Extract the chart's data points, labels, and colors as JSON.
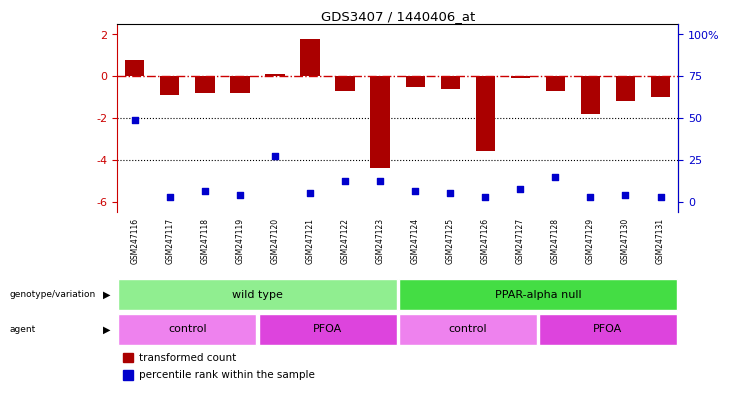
{
  "title": "GDS3407 / 1440406_at",
  "samples": [
    "GSM247116",
    "GSM247117",
    "GSM247118",
    "GSM247119",
    "GSM247120",
    "GSM247121",
    "GSM247122",
    "GSM247123",
    "GSM247124",
    "GSM247125",
    "GSM247126",
    "GSM247127",
    "GSM247128",
    "GSM247129",
    "GSM247130",
    "GSM247131"
  ],
  "bar_values": [
    0.8,
    -0.9,
    -0.8,
    -0.8,
    0.1,
    1.8,
    -0.7,
    -4.4,
    -0.5,
    -0.6,
    -3.6,
    -0.1,
    -0.7,
    -1.8,
    -1.2,
    -1.0
  ],
  "dot_values": [
    -2.1,
    -5.8,
    -5.5,
    -5.7,
    -3.8,
    -5.6,
    -5.0,
    -5.0,
    -5.5,
    -5.6,
    -5.8,
    -5.4,
    -4.8,
    -5.8,
    -5.7,
    -5.8
  ],
  "bar_color": "#aa0000",
  "dot_color": "#0000cc",
  "hline_color": "#cc0000",
  "dotted_line_color": "#000000",
  "ylim": [
    -6.5,
    2.5
  ],
  "yticks_left": [
    2,
    0,
    -2,
    -4,
    -6
  ],
  "yticks_right_vals": [
    2,
    0,
    -2,
    -4,
    -6
  ],
  "yticks_right_labels": [
    "100%",
    "75",
    "50",
    "25",
    "0"
  ],
  "right_axis_color": "#0000cc",
  "genotype_groups": [
    {
      "label": "wild type",
      "start": 0,
      "end": 7,
      "color": "#90ee90"
    },
    {
      "label": "PPAR-alpha null",
      "start": 8,
      "end": 15,
      "color": "#44dd44"
    }
  ],
  "agent_groups": [
    {
      "label": "control",
      "start": 0,
      "end": 3,
      "color": "#ee82ee"
    },
    {
      "label": "PFOA",
      "start": 4,
      "end": 7,
      "color": "#dd44dd"
    },
    {
      "label": "control",
      "start": 8,
      "end": 11,
      "color": "#ee82ee"
    },
    {
      "label": "PFOA",
      "start": 12,
      "end": 15,
      "color": "#dd44dd"
    }
  ],
  "left_labels": [
    "genotype/variation",
    "agent"
  ],
  "bar_width": 0.55,
  "dot_size": 18,
  "ticklabel_bg_color": "#cccccc"
}
